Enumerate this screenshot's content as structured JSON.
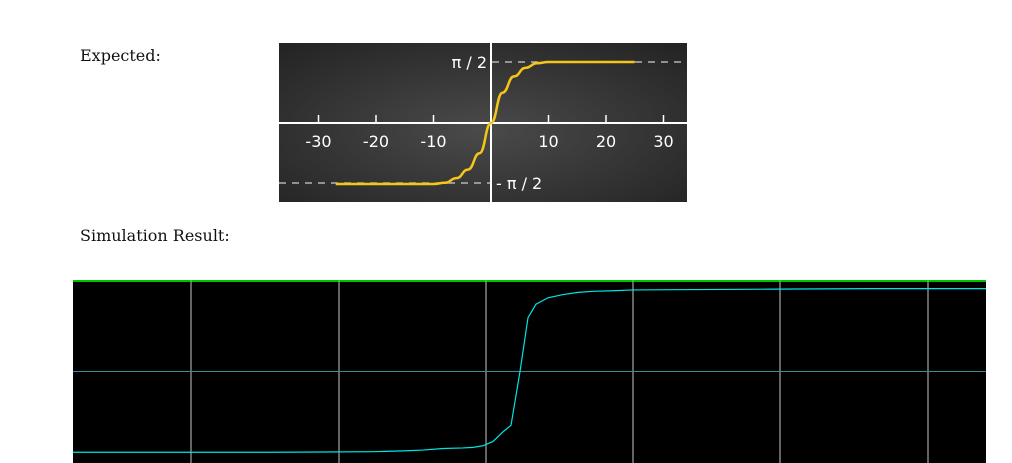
{
  "labels": {
    "expected": "Expected:",
    "simulation": "Simulation Result:"
  },
  "chart_data": [
    {
      "type": "line",
      "name": "expected",
      "xlim": [
        -34,
        34
      ],
      "ylim": [
        -2.1,
        2.1
      ],
      "x_ticks": [
        -30,
        -20,
        -10,
        10,
        20,
        30
      ],
      "x_tick_labels": [
        "-30",
        "-20",
        "-10",
        "10",
        "20",
        "30"
      ],
      "reference_lines": [
        {
          "y": 1.5708,
          "label": "π / 2",
          "style": "dashed"
        },
        {
          "y": -1.5708,
          "label": "- π / 2",
          "style": "dashed"
        }
      ],
      "series": [
        {
          "color": "#f5c518",
          "x": [
            -27,
            -25,
            -20,
            -15,
            -10,
            -8,
            -6,
            -4,
            -2,
            0,
            2,
            4,
            6,
            8,
            10,
            15,
            20,
            25
          ],
          "y": [
            -1.5708,
            -1.5708,
            -1.5708,
            -1.5708,
            -1.5708,
            -1.54,
            -1.42,
            -1.2,
            -0.78,
            0,
            0.78,
            1.2,
            1.42,
            1.54,
            1.5708,
            1.5708,
            1.5708,
            1.5708
          ]
        }
      ],
      "colors": {
        "background": "#2d2d2d",
        "axis": "#ffffff",
        "dash": "#cfcfcf"
      }
    },
    {
      "type": "line",
      "name": "simulation",
      "xlim": [
        0,
        913
      ],
      "ylim": [
        -1.7,
        1.7
      ],
      "grid": true,
      "grid_x": [
        118,
        266,
        413,
        560,
        707,
        855
      ],
      "grid_y": [
        0
      ],
      "series": [
        {
          "color": "#00e5e5",
          "x": [
            0,
            50,
            100,
            150,
            200,
            250,
            300,
            330,
            350,
            370,
            390,
            400,
            410,
            420,
            430,
            438,
            447,
            455,
            463,
            475,
            490,
            505,
            520,
            540,
            560,
            600,
            650,
            700,
            750,
            800,
            850,
            913
          ],
          "y": [
            -1.5,
            -1.5,
            -1.5,
            -1.5,
            -1.5,
            -1.495,
            -1.49,
            -1.475,
            -1.46,
            -1.43,
            -1.42,
            -1.41,
            -1.38,
            -1.3,
            -1.12,
            -1.0,
            0,
            1.0,
            1.25,
            1.37,
            1.43,
            1.47,
            1.49,
            1.5,
            1.515,
            1.52,
            1.525,
            1.53,
            1.535,
            1.54,
            1.54,
            1.54
          ]
        }
      ],
      "colors": {
        "background": "#000000",
        "grid": "#c8c8c8",
        "center_line": "#3c8a9a",
        "top_line": "#00ff00"
      }
    }
  ]
}
